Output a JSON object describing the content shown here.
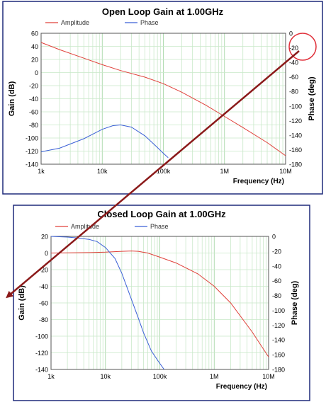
{
  "chart_data": [
    {
      "type": "line",
      "title": "Open Loop Gain at 1.00GHz",
      "xlabel": "Frequency (Hz)",
      "ylabel": "Gain (dB)",
      "y2label": "Phase (deg)",
      "x_scale": "log",
      "xlim": [
        1000,
        10000000
      ],
      "ylim": [
        -140,
        60
      ],
      "y2lim": [
        -180,
        0
      ],
      "x_ticks": [
        {
          "value": 1000,
          "label": "1k"
        },
        {
          "value": 10000,
          "label": "10k"
        },
        {
          "value": 100000,
          "label": "100k"
        },
        {
          "value": 1000000,
          "label": "1M"
        },
        {
          "value": 10000000,
          "label": "10M"
        }
      ],
      "y_ticks": [
        "60",
        "40",
        "20",
        "0",
        "-20",
        "-40",
        "-60",
        "-80",
        "-100",
        "-120",
        "-140"
      ],
      "y2_ticks": [
        "0",
        "-20",
        "-40",
        "-60",
        "-80",
        "-100",
        "-120",
        "-140",
        "-160",
        "-180"
      ],
      "grid": true,
      "legend_position": "top-left",
      "series": [
        {
          "name": "Amplitude",
          "axis": "left",
          "color": "#e0403a",
          "x": [
            1000,
            2000,
            5000,
            10000,
            20000,
            50000,
            100000,
            200000,
            500000,
            1000000,
            2000000,
            5000000,
            10000000
          ],
          "y": [
            46,
            35,
            22,
            12,
            3,
            -7,
            -17,
            -30,
            -50,
            -67,
            -84,
            -107,
            -127
          ]
        },
        {
          "name": "Phase",
          "axis": "right",
          "color": "#3a5fd6",
          "x": [
            1000,
            2000,
            5000,
            10000,
            15000,
            20000,
            30000,
            50000,
            80000,
            100000,
            120000
          ],
          "y": [
            -163,
            -158,
            -145,
            -132,
            -127,
            -126,
            -129,
            -141,
            -157,
            -165,
            -171
          ]
        }
      ]
    },
    {
      "type": "line",
      "title": "Closed Loop Gain at 1.00GHz",
      "xlabel": "Frequency (Hz)",
      "ylabel": "Gain (dB)",
      "y2label": "Phase (deg)",
      "x_scale": "log",
      "xlim": [
        1000,
        10000000
      ],
      "ylim": [
        -140,
        20
      ],
      "y2lim": [
        -180,
        0
      ],
      "x_ticks": [
        {
          "value": 1000,
          "label": "1k"
        },
        {
          "value": 10000,
          "label": "10k"
        },
        {
          "value": 100000,
          "label": "100k"
        },
        {
          "value": 1000000,
          "label": "1M"
        },
        {
          "value": 10000000,
          "label": "10M"
        }
      ],
      "y_ticks": [
        "20",
        "0",
        "-20",
        "-40",
        "-60",
        "-80",
        "-100",
        "-120",
        "-140"
      ],
      "y2_ticks": [
        "0",
        "-20",
        "-40",
        "-60",
        "-80",
        "-100",
        "-120",
        "-140",
        "-160",
        "-180"
      ],
      "grid": true,
      "legend_position": "top-left",
      "series": [
        {
          "name": "Amplitude",
          "axis": "left",
          "color": "#e0403a",
          "x": [
            1000,
            5000,
            10000,
            20000,
            30000,
            40000,
            60000,
            100000,
            200000,
            500000,
            1000000,
            2000000,
            5000000,
            10000000
          ],
          "y": [
            0,
            0.5,
            1,
            2,
            2.5,
            2,
            0,
            -5,
            -12,
            -25,
            -40,
            -60,
            -95,
            -125
          ]
        },
        {
          "name": "Phase",
          "axis": "right",
          "color": "#3a5fd6",
          "x": [
            1000,
            2000,
            3000,
            5000,
            7000,
            10000,
            15000,
            20000,
            30000,
            40000,
            50000,
            70000,
            100000,
            120000
          ],
          "y": [
            0,
            -1,
            -2,
            -4,
            -7,
            -15,
            -30,
            -50,
            -85,
            -110,
            -130,
            -155,
            -172,
            -180
          ]
        }
      ]
    }
  ]
}
